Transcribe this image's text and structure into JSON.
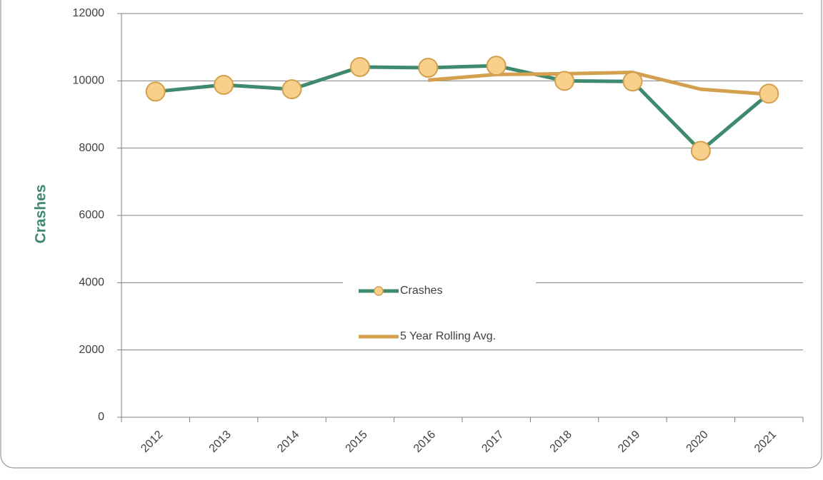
{
  "chart_data": {
    "type": "line",
    "y_label": "Crashes",
    "categories": [
      "2012",
      "2013",
      "2014",
      "2015",
      "2016",
      "2017",
      "2018",
      "2019",
      "2020",
      "2021"
    ],
    "series": [
      {
        "name": "Crashes",
        "color": "#3f8a6d",
        "marker_fill": "#f8d08c",
        "marker_stroke": "#d3a04f",
        "markers": true,
        "values": [
          9680,
          9880,
          9750,
          10410,
          10390,
          10450,
          10000,
          9980,
          7920,
          9620
        ]
      },
      {
        "name": "5 Year Rolling Avg.",
        "color": "#d3a04f",
        "markers": false,
        "values": [
          null,
          null,
          null,
          null,
          10020,
          10190,
          10210,
          10250,
          9750,
          9600
        ]
      }
    ],
    "ylim": [
      0,
      12000
    ],
    "yticks": [
      0,
      2000,
      4000,
      6000,
      8000,
      10000,
      12000
    ],
    "grid": true,
    "legend": "center"
  }
}
